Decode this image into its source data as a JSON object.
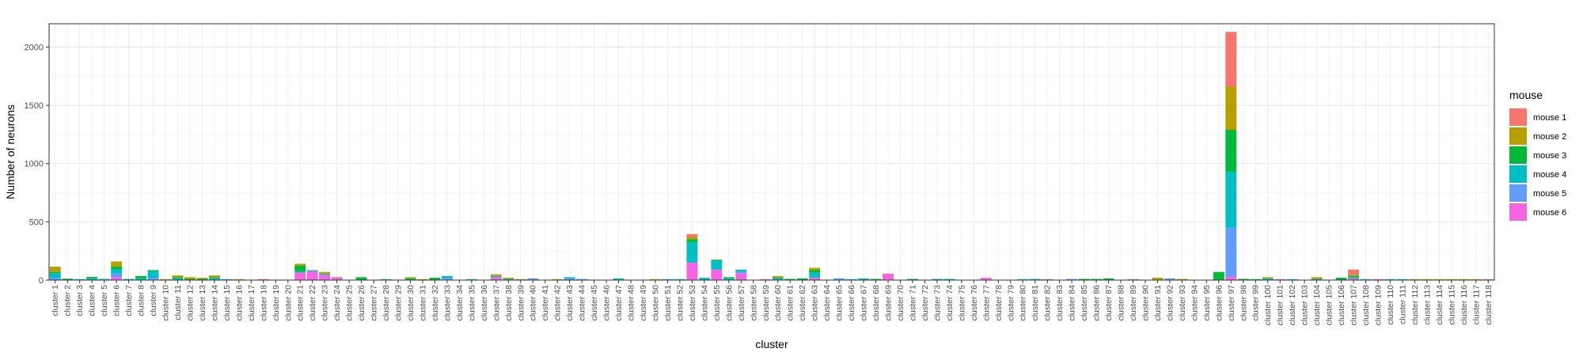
{
  "chart_data": {
    "type": "bar",
    "stacked": true,
    "title": "",
    "xlabel": "cluster",
    "ylabel": "Number of neurons",
    "ylim": [
      0,
      2200
    ],
    "yticks": [
      0,
      500,
      1000,
      1500,
      2000
    ],
    "grid": true,
    "legend": {
      "title": "mouse",
      "placement": "right"
    },
    "categories": [
      "cluster 1",
      "cluster 2",
      "cluster 3",
      "cluster 4",
      "cluster 5",
      "cluster 6",
      "cluster 7",
      "cluster 8",
      "cluster 9",
      "cluster 10",
      "cluster 11",
      "cluster 12",
      "cluster 13",
      "cluster 14",
      "cluster 15",
      "cluster 16",
      "cluster 17",
      "cluster 18",
      "cluster 19",
      "cluster 20",
      "cluster 21",
      "cluster 22",
      "cluster 23",
      "cluster 24",
      "cluster 25",
      "cluster 26",
      "cluster 27",
      "cluster 28",
      "cluster 29",
      "cluster 30",
      "cluster 31",
      "cluster 32",
      "cluster 33",
      "cluster 34",
      "cluster 35",
      "cluster 36",
      "cluster 37",
      "cluster 38",
      "cluster 39",
      "cluster 40",
      "cluster 41",
      "cluster 42",
      "cluster 43",
      "cluster 44",
      "cluster 45",
      "cluster 46",
      "cluster 47",
      "cluster 48",
      "cluster 49",
      "cluster 50",
      "cluster 51",
      "cluster 52",
      "cluster 53",
      "cluster 54",
      "cluster 55",
      "cluster 56",
      "cluster 57",
      "cluster 58",
      "cluster 59",
      "cluster 60",
      "cluster 61",
      "cluster 62",
      "cluster 63",
      "cluster 64",
      "cluster 65",
      "cluster 66",
      "cluster 67",
      "cluster 68",
      "cluster 69",
      "cluster 70",
      "cluster 71",
      "cluster 72",
      "cluster 73",
      "cluster 74",
      "cluster 75",
      "cluster 76",
      "cluster 77",
      "cluster 78",
      "cluster 79",
      "cluster 80",
      "cluster 81",
      "cluster 82",
      "cluster 83",
      "cluster 84",
      "cluster 85",
      "cluster 86",
      "cluster 87",
      "cluster 88",
      "cluster 89",
      "cluster 90",
      "cluster 91",
      "cluster 92",
      "cluster 93",
      "cluster 94",
      "cluster 95",
      "cluster 96",
      "cluster 97",
      "cluster 98",
      "cluster 99",
      "cluster 100",
      "cluster 101",
      "cluster 102",
      "cluster 103",
      "cluster 104",
      "cluster 105",
      "cluster 106",
      "cluster 107",
      "cluster 108",
      "cluster 109",
      "cluster 110",
      "cluster 111",
      "cluster 112",
      "cluster 113",
      "cluster 114",
      "cluster 115",
      "cluster 116",
      "cluster 117",
      "cluster 118"
    ],
    "series": [
      {
        "name": "mouse 1",
        "color": "#F8766D",
        "values": [
          0,
          0,
          0,
          0,
          0,
          0,
          0,
          0,
          0,
          0,
          0,
          0,
          0,
          0,
          0,
          0,
          0,
          8,
          0,
          0,
          0,
          0,
          0,
          0,
          0,
          0,
          0,
          0,
          0,
          0,
          0,
          0,
          0,
          0,
          0,
          0,
          0,
          0,
          0,
          0,
          0,
          0,
          0,
          0,
          0,
          0,
          0,
          0,
          0,
          0,
          0,
          0,
          25,
          0,
          0,
          0,
          0,
          0,
          0,
          0,
          0,
          0,
          0,
          0,
          0,
          0,
          0,
          0,
          0,
          0,
          0,
          0,
          0,
          0,
          0,
          0,
          0,
          0,
          0,
          0,
          0,
          8,
          0,
          0,
          0,
          0,
          0,
          0,
          0,
          0,
          0,
          0,
          0,
          0,
          0,
          0,
          470,
          0,
          0,
          0,
          0,
          0,
          0,
          0,
          0,
          0,
          45,
          0,
          0,
          0,
          0,
          0,
          0,
          0,
          0,
          0,
          0,
          8
        ]
      },
      {
        "name": "mouse 2",
        "color": "#B79F00",
        "values": [
          45,
          0,
          0,
          0,
          0,
          45,
          0,
          0,
          0,
          8,
          15,
          15,
          10,
          15,
          0,
          8,
          0,
          0,
          0,
          0,
          15,
          0,
          15,
          0,
          0,
          0,
          0,
          0,
          0,
          10,
          8,
          0,
          0,
          0,
          0,
          0,
          15,
          10,
          8,
          0,
          0,
          8,
          0,
          0,
          0,
          0,
          0,
          0,
          0,
          8,
          0,
          0,
          20,
          0,
          0,
          0,
          0,
          0,
          0,
          15,
          0,
          0,
          20,
          0,
          0,
          0,
          0,
          0,
          0,
          0,
          0,
          0,
          0,
          0,
          0,
          0,
          0,
          0,
          0,
          0,
          0,
          0,
          0,
          0,
          0,
          0,
          0,
          0,
          0,
          0,
          20,
          0,
          10,
          0,
          0,
          0,
          370,
          0,
          0,
          10,
          0,
          0,
          0,
          15,
          0,
          0,
          10,
          0,
          0,
          0,
          0,
          8,
          8,
          8,
          8,
          8,
          8,
          0
        ]
      },
      {
        "name": "mouse 3",
        "color": "#00BA38",
        "values": [
          10,
          12,
          0,
          12,
          0,
          20,
          0,
          20,
          10,
          0,
          10,
          10,
          10,
          10,
          0,
          0,
          0,
          0,
          0,
          0,
          50,
          0,
          0,
          0,
          0,
          25,
          0,
          0,
          0,
          15,
          0,
          20,
          0,
          0,
          0,
          0,
          0,
          0,
          0,
          0,
          0,
          0,
          0,
          0,
          0,
          0,
          0,
          0,
          0,
          0,
          0,
          0,
          25,
          0,
          10,
          10,
          0,
          0,
          0,
          0,
          10,
          15,
          20,
          0,
          0,
          0,
          0,
          10,
          0,
          0,
          10,
          0,
          0,
          0,
          0,
          0,
          0,
          0,
          0,
          0,
          0,
          0,
          0,
          0,
          10,
          10,
          15,
          0,
          0,
          0,
          0,
          0,
          0,
          0,
          0,
          70,
          360,
          10,
          8,
          0,
          0,
          0,
          0,
          0,
          0,
          20,
          10,
          0,
          0,
          0,
          0,
          0,
          0,
          0,
          0,
          0,
          0,
          0
        ]
      },
      {
        "name": "mouse 4",
        "color": "#00BFC4",
        "values": [
          40,
          0,
          8,
          15,
          10,
          40,
          10,
          15,
          55,
          0,
          15,
          0,
          0,
          15,
          8,
          0,
          0,
          0,
          0,
          0,
          10,
          10,
          10,
          0,
          0,
          0,
          0,
          8,
          0,
          0,
          0,
          0,
          15,
          0,
          8,
          0,
          10,
          10,
          0,
          0,
          0,
          0,
          10,
          0,
          0,
          0,
          15,
          0,
          0,
          0,
          8,
          8,
          175,
          20,
          75,
          15,
          20,
          0,
          0,
          20,
          0,
          0,
          45,
          0,
          0,
          8,
          15,
          0,
          0,
          0,
          0,
          0,
          10,
          10,
          0,
          0,
          0,
          0,
          0,
          8,
          10,
          0,
          0,
          0,
          0,
          0,
          0,
          0,
          0,
          0,
          0,
          0,
          0,
          0,
          0,
          0,
          480,
          0,
          0,
          15,
          0,
          8,
          0,
          10,
          0,
          0,
          10,
          8,
          0,
          8,
          8,
          0,
          0,
          0,
          0,
          0,
          0,
          0
        ]
      },
      {
        "name": "mouse 5",
        "color": "#619CFF",
        "values": [
          20,
          0,
          0,
          0,
          0,
          30,
          0,
          0,
          20,
          0,
          0,
          0,
          0,
          0,
          0,
          0,
          0,
          0,
          0,
          0,
          0,
          0,
          0,
          0,
          0,
          0,
          0,
          0,
          0,
          0,
          0,
          0,
          20,
          0,
          0,
          0,
          0,
          0,
          0,
          15,
          0,
          0,
          15,
          10,
          0,
          0,
          0,
          0,
          0,
          0,
          0,
          0,
          0,
          0,
          0,
          0,
          10,
          0,
          0,
          0,
          0,
          0,
          0,
          0,
          15,
          0,
          0,
          0,
          0,
          0,
          0,
          0,
          0,
          0,
          0,
          0,
          0,
          0,
          0,
          0,
          0,
          0,
          0,
          10,
          0,
          0,
          0,
          0,
          8,
          0,
          0,
          15,
          0,
          0,
          0,
          0,
          420,
          0,
          0,
          0,
          0,
          0,
          0,
          0,
          0,
          0,
          0,
          0,
          0,
          0,
          0,
          0,
          0,
          0,
          0,
          0,
          0,
          0
        ]
      },
      {
        "name": "mouse 6",
        "color": "#F564E3",
        "values": [
          0,
          0,
          0,
          0,
          0,
          25,
          0,
          0,
          0,
          0,
          0,
          0,
          0,
          0,
          0,
          0,
          0,
          0,
          0,
          0,
          65,
          75,
          45,
          25,
          0,
          0,
          0,
          0,
          0,
          0,
          0,
          0,
          0,
          0,
          0,
          0,
          25,
          0,
          0,
          0,
          0,
          0,
          0,
          0,
          0,
          0,
          0,
          0,
          0,
          0,
          0,
          0,
          150,
          0,
          90,
          0,
          60,
          0,
          8,
          0,
          0,
          0,
          20,
          0,
          0,
          0,
          0,
          0,
          55,
          0,
          0,
          0,
          0,
          0,
          0,
          0,
          20,
          0,
          0,
          0,
          0,
          0,
          0,
          0,
          0,
          0,
          0,
          0,
          0,
          0,
          0,
          0,
          0,
          0,
          0,
          0,
          30,
          0,
          0,
          0,
          8,
          0,
          0,
          0,
          0,
          0,
          15,
          0,
          8,
          0,
          0,
          0,
          0,
          0,
          0,
          0,
          0,
          0
        ]
      }
    ]
  }
}
